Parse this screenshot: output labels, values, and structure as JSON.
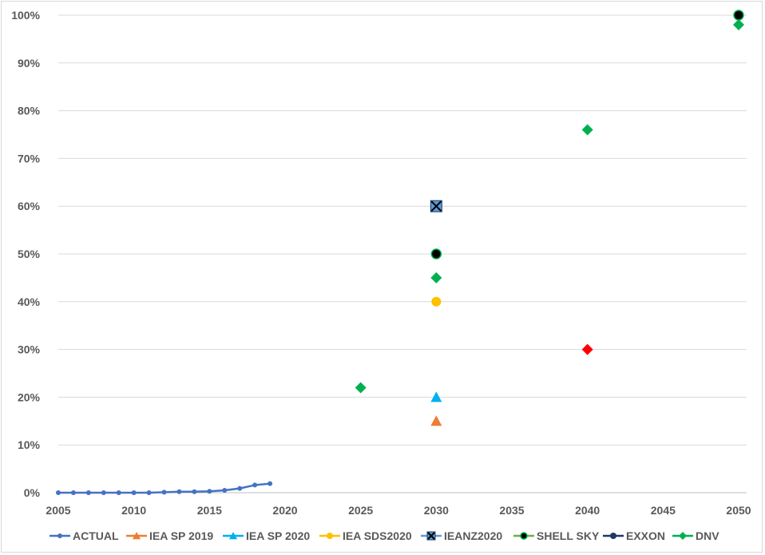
{
  "chart_data": {
    "type": "scatter",
    "title": "",
    "xlabel": "",
    "ylabel": "",
    "xlim": [
      2005,
      2050
    ],
    "ylim": [
      0,
      100
    ],
    "x_ticks": [
      "2005",
      "2010",
      "2015",
      "2020",
      "2025",
      "2030",
      "2035",
      "2040",
      "2045",
      "2050"
    ],
    "y_ticks": [
      "0%",
      "10%",
      "20%",
      "30%",
      "40%",
      "50%",
      "60%",
      "70%",
      "80%",
      "90%",
      "100%"
    ],
    "grid": "horizontal",
    "legend": "bottom",
    "series": [
      {
        "name": "ACTUAL",
        "color": "#4472c4",
        "marker": "circle",
        "line": true,
        "x": [
          2005,
          2006,
          2007,
          2008,
          2009,
          2010,
          2011,
          2012,
          2013,
          2014,
          2015,
          2016,
          2017,
          2018,
          2019
        ],
        "y": [
          0,
          0,
          0,
          0,
          0,
          0,
          0,
          0.1,
          0.2,
          0.2,
          0.3,
          0.5,
          0.9,
          1.6,
          1.9
        ]
      },
      {
        "name": "IEA SP 2019",
        "color": "#ed7d31",
        "marker": "triangle",
        "line": false,
        "x": [
          2030
        ],
        "y": [
          15
        ]
      },
      {
        "name": "IEA SP 2020",
        "color": "#00b0f0",
        "marker": "triangle",
        "line": false,
        "x": [
          2030
        ],
        "y": [
          20
        ]
      },
      {
        "name": "IEA SDS2020",
        "color": "#ffc000",
        "marker": "circle",
        "line": false,
        "x": [
          2030
        ],
        "y": [
          40
        ]
      },
      {
        "name": "IEANZ2020",
        "color": "#5b9bd5",
        "marker": "xsquare",
        "line": false,
        "x": [
          2030
        ],
        "y": [
          60
        ]
      },
      {
        "name": "SHELL SKY",
        "color": "#000000",
        "edge": "#00b050",
        "marker": "circle",
        "line": false,
        "x": [
          2030,
          2050
        ],
        "y": [
          50,
          100
        ]
      },
      {
        "name": "EXXON",
        "color": "#1f3864",
        "marker": "circle",
        "line": false,
        "x": [],
        "y": []
      },
      {
        "name": "DNV",
        "color": "#00b050",
        "marker": "diamond",
        "line": false,
        "x": [
          2025,
          2030,
          2040,
          2050
        ],
        "y": [
          22,
          45,
          76,
          98
        ]
      }
    ],
    "extra_points": [
      {
        "x": 2040,
        "y": 30,
        "color": "#ff0000",
        "marker": "diamond"
      }
    ]
  }
}
